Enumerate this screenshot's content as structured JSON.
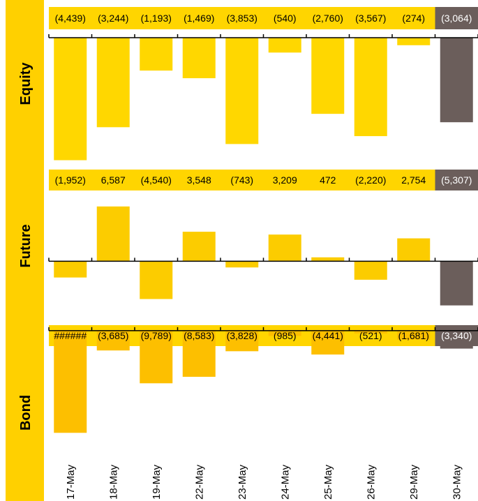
{
  "chart_data": {
    "type": "bar",
    "categories": [
      "17-May",
      "18-May",
      "19-May",
      "22-May",
      "23-May",
      "24-May",
      "25-May",
      "26-May",
      "29-May",
      "30-May"
    ],
    "panels": [
      {
        "name": "Equity",
        "values": [
          -4439,
          -3244,
          -1193,
          -1469,
          -3853,
          -540,
          -2760,
          -3567,
          -274,
          -3064
        ],
        "labels": [
          "(4,439)",
          "(3,244)",
          "(1,193)",
          "(1,469)",
          "(3,853)",
          "(540)",
          "(2,760)",
          "(3,567)",
          "(274)",
          "(3,064)"
        ],
        "ylim": [
          -4500,
          100
        ]
      },
      {
        "name": "Future",
        "values": [
          -1952,
          6587,
          -4540,
          3548,
          -743,
          3209,
          472,
          -2220,
          2754,
          -5307
        ],
        "labels": [
          "(1,952)",
          "6,587",
          "(4,540)",
          "3,548",
          "(743)",
          "3,209",
          "472",
          "(2,220)",
          "2,754",
          "(5,307)"
        ],
        "ylim": [
          -5500,
          7500
        ]
      },
      {
        "name": "Bond",
        "values": [
          -19000,
          -3685,
          -9789,
          -8583,
          -3828,
          -985,
          -4441,
          -521,
          -1681,
          -3340
        ],
        "labels": [
          "######",
          "(3,685)",
          "(9,789)",
          "(8,583)",
          "(3,828)",
          "(985)",
          "(4,441)",
          "(521)",
          "(1,681)",
          "(3,340)"
        ],
        "ylim": [
          -20000,
          500
        ]
      }
    ],
    "colors": {
      "equity": "#ffd700",
      "future": "#fccc00",
      "bond": "#fdbf00",
      "highlight": "#6b5e5b",
      "band": "#ffd000",
      "label_band": "#ffd500"
    }
  }
}
